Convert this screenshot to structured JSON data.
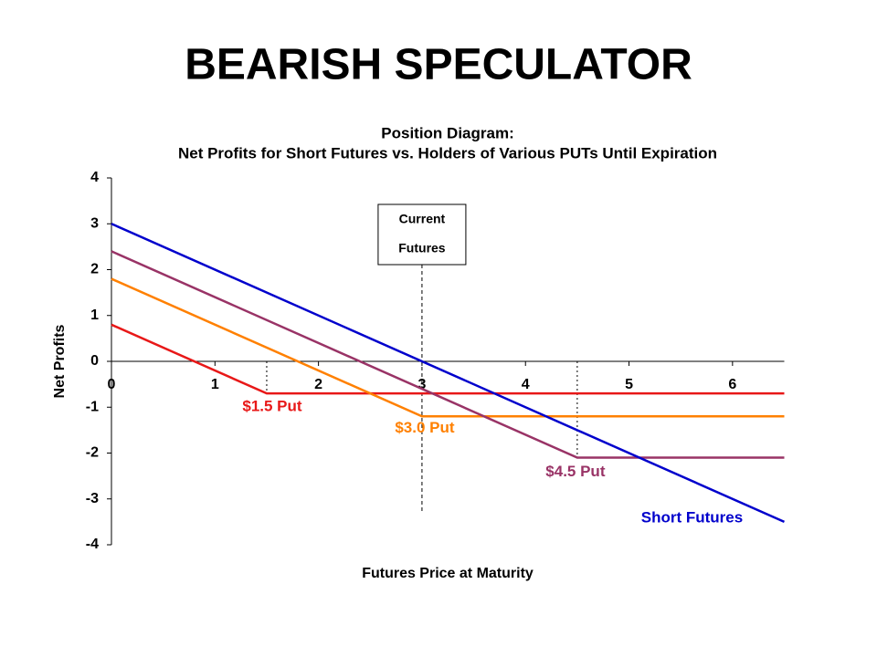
{
  "slide_title": "BEARISH SPECULATOR",
  "chart_data": {
    "type": "line",
    "title": [
      "Position Diagram:",
      "Net Profits for Short Futures vs. Holders of Various PUTs Until Expiration"
    ],
    "x_label": "Futures Price at Maturity",
    "y_label": "Net Profits",
    "xlim": [
      0,
      6.5
    ],
    "ylim": [
      -4,
      4
    ],
    "xticks": [
      0,
      1,
      2,
      3,
      4,
      5,
      6
    ],
    "yticks": [
      -4,
      -3,
      -2,
      -1,
      0,
      1,
      2,
      3,
      4
    ],
    "annotation": {
      "text": [
        "Current",
        "Futures"
      ],
      "x": 3
    },
    "series": [
      {
        "name": "$1.5 Put",
        "color": "#e81818",
        "x": [
          0,
          1.5,
          6.5
        ],
        "values": [
          0.8,
          -0.7,
          -0.7
        ]
      },
      {
        "name": "$3.0 Put",
        "color": "#ff8000",
        "x": [
          0,
          3,
          6.5
        ],
        "values": [
          1.8,
          -1.2,
          -1.2
        ]
      },
      {
        "name": "$4.5 Put",
        "color": "#993366",
        "x": [
          0,
          4.5,
          6.5
        ],
        "values": [
          2.4,
          -2.1,
          -2.1
        ]
      },
      {
        "name": "Short Futures",
        "color": "#0000cc",
        "x": [
          0,
          6.5
        ],
        "values": [
          3,
          -3.5
        ]
      }
    ]
  }
}
